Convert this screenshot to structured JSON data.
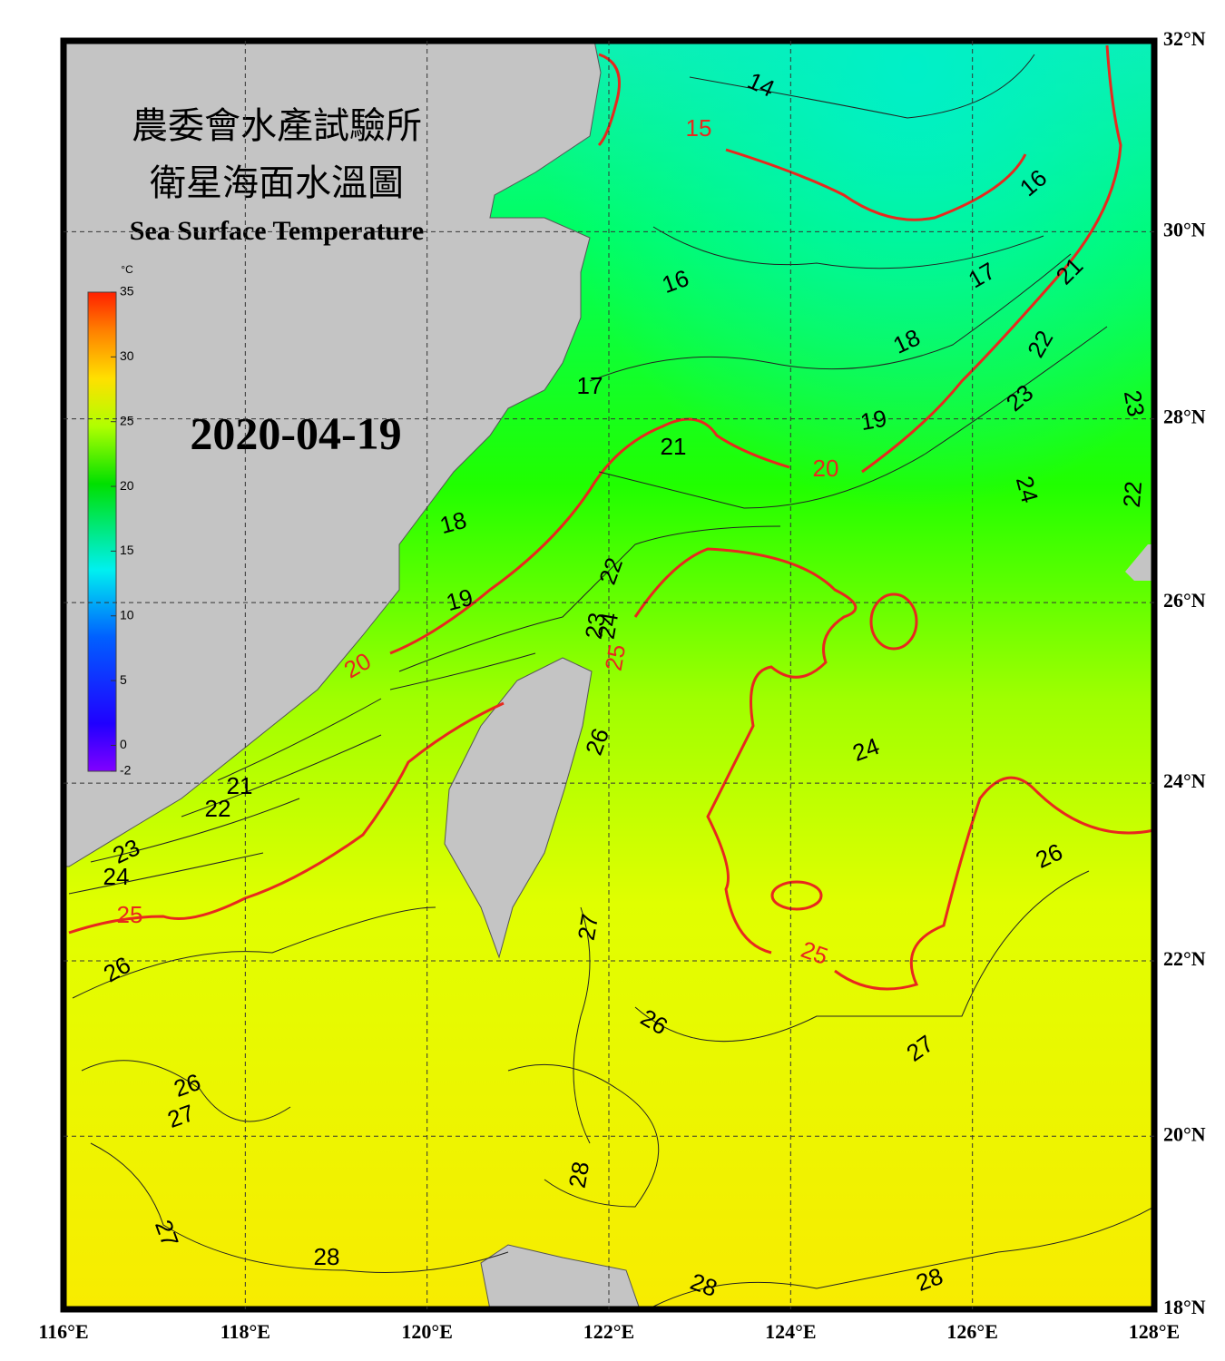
{
  "header": {
    "title_zh_1": "農委會水產試驗所",
    "title_zh_2": "衛星海面水溫圖",
    "title_en": "Sea Surface Temperature",
    "date": "2020-04-19"
  },
  "colorbar": {
    "unit": "°C",
    "lim": [
      -2,
      35
    ],
    "ticks": [
      -2,
      0,
      5,
      10,
      15,
      20,
      25,
      30,
      35
    ]
  },
  "map": {
    "xlim": [
      116,
      128
    ],
    "ylim": [
      18,
      32
    ],
    "xticks": [
      {
        "value": 116,
        "label": "116°E"
      },
      {
        "value": 118,
        "label": "118°E"
      },
      {
        "value": 120,
        "label": "120°E"
      },
      {
        "value": 122,
        "label": "122°E"
      },
      {
        "value": 124,
        "label": "124°E"
      },
      {
        "value": 126,
        "label": "126°E"
      },
      {
        "value": 128,
        "label": "128°E"
      }
    ],
    "yticks": [
      {
        "value": 18,
        "label": "18°N"
      },
      {
        "value": 20,
        "label": "20°N"
      },
      {
        "value": 22,
        "label": "22°N"
      },
      {
        "value": 24,
        "label": "24°N"
      },
      {
        "value": 26,
        "label": "26°N"
      },
      {
        "value": 28,
        "label": "28°N"
      },
      {
        "value": 30,
        "label": "30°N"
      },
      {
        "value": 32,
        "label": "32°N"
      }
    ],
    "grid": true,
    "contour_labels": [
      14,
      15,
      16,
      16,
      17,
      21,
      18,
      22,
      17,
      23,
      23,
      19,
      21,
      20,
      24,
      22,
      18,
      22,
      19,
      23,
      24,
      25,
      20,
      26,
      24,
      21,
      22,
      23,
      26,
      24,
      25,
      27,
      26,
      25,
      26,
      27,
      26,
      27,
      28,
      27,
      28,
      28,
      28
    ]
  }
}
